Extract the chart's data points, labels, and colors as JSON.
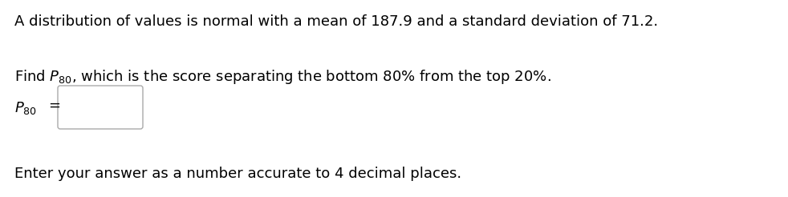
{
  "line1": "A distribution of values is normal with a mean of 187.9 and a standard deviation of 71.2.",
  "line2_find": "Find ",
  "line2_p80": "$P_{80}$,",
  "line2_rest": " which is the score separating the bottom 80% from the top 20%.",
  "line3_p80": "$P_{80}$",
  "line3_eq": "=",
  "line4": "Enter your answer as a number accurate to 4 decimal places.",
  "bg_color": "#ffffff",
  "text_color": "#000000",
  "font_size": 13.0,
  "fig_width": 9.82,
  "fig_height": 2.46,
  "dpi": 100
}
